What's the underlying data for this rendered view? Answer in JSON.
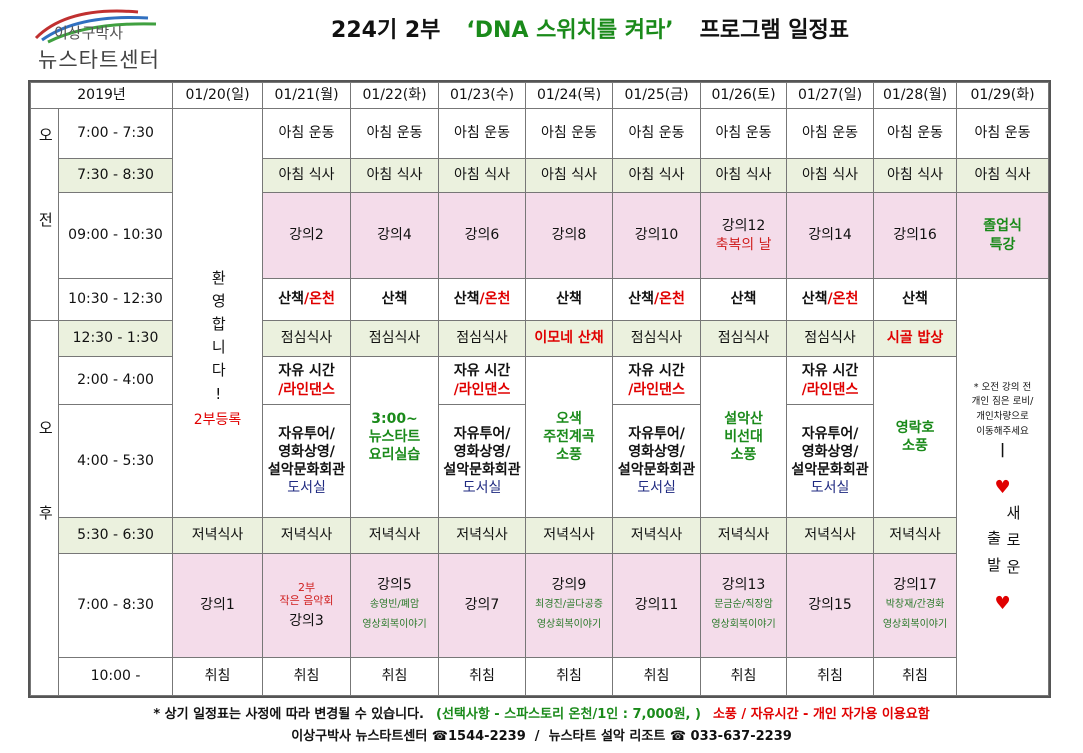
{
  "logo": {
    "line1": "이상구박사",
    "line2": "뉴스타트센터"
  },
  "title": {
    "part1": "224기 2부",
    "part2": "‘DNA 스위치를 켜라’",
    "part3": "프로그램 일정표"
  },
  "table": {
    "corner": "2019년",
    "dates": [
      "01/20(일)",
      "01/21(월)",
      "01/22(화)",
      "01/23(수)",
      "01/24(목)",
      "01/25(금)",
      "01/26(토)",
      "01/27(일)",
      "01/28(월)",
      "01/29(화)"
    ],
    "am": "오전",
    "pm": "오후",
    "times": [
      "7:00  -  7:30",
      "7:30  -  8:30",
      "09:00  -  10:30",
      "10:30  -  12:30",
      "12:30  -  1:30",
      "2:00  -  4:00",
      "4:00  -  5:30",
      "5:30  -  6:30",
      "7:00  -  8:30",
      "10:00  -"
    ],
    "welcome": "환영합니다!",
    "registration": "2부등록",
    "rows": [
      [
        "아침 운동",
        "아침 운동",
        "아침 운동",
        "아침 운동",
        "아침 운동",
        "아침 운동",
        "아침 운동",
        "아침 운동",
        "아침 운동"
      ],
      [
        "아침 식사",
        "아침 식사",
        "아침 식사",
        "아침 식사",
        "아침 식사",
        "아침 식사",
        "아침 식사",
        "아침 식사",
        "아침 식사"
      ],
      [
        "강의2",
        "강의4",
        "강의6",
        "강의8",
        "강의10",
        [
          "강의12",
          "축복의 날"
        ],
        "강의14",
        "강의16",
        [
          "졸업식",
          "특강"
        ]
      ],
      [
        [
          "산책",
          "/온천"
        ],
        "산책",
        [
          "산책",
          "/온천"
        ],
        "산책",
        [
          "산책",
          "/온천"
        ],
        "산책",
        [
          "산책",
          "/온천"
        ],
        "산책"
      ],
      [
        "점심식사",
        "점심식사",
        "점심식사",
        "이모네 산채",
        "점심식사",
        "점심식사",
        "점심식사",
        "시골 밥상"
      ],
      [
        [
          "자유 시간",
          "/라인댄스"
        ],
        [
          "3:00~",
          "뉴스타트",
          "요리실습"
        ],
        [
          "자유 시간",
          "/라인댄스"
        ],
        [
          "오색",
          "주전계곡",
          "소풍"
        ],
        [
          "자유 시간",
          "/라인댄스"
        ],
        [
          "설악산",
          "비선대",
          "소풍"
        ],
        [
          "자유 시간",
          "/라인댄스"
        ],
        [
          "영락호",
          "소풍"
        ]
      ],
      [
        [
          "자유투어/",
          "영화상영/",
          "설악문화회관",
          "도서실"
        ],
        [
          "자유투어/",
          "영화상영/",
          "설악문화회관",
          "도서실"
        ],
        [
          "자유투어/",
          "영화상영/",
          "설악문화회관",
          "도서실"
        ],
        [
          "자유투어/",
          "영화상영/",
          "설악문화회관",
          "도서실"
        ]
      ],
      [
        "저녁식사",
        "저녁식사",
        "저녁식사",
        "저녁식사",
        "저녁식사",
        "저녁식사",
        "저녁식사",
        "저녁식사",
        "저녁식사"
      ],
      [
        "강의1",
        [
          "2부",
          "작은 음악회",
          "강의3"
        ],
        [
          "강의5",
          "송영빈/폐암",
          "영상회복이야기"
        ],
        "강의7",
        [
          "강의9",
          "최경진/골다공증",
          "영상회복이야기"
        ],
        "강의11",
        [
          "강의13",
          "문금순/직장암",
          "영상회복이야기"
        ],
        "강의15",
        [
          "강의17",
          "박창재/간경화",
          "영상회복이야기"
        ]
      ],
      [
        "취침",
        "취침",
        "취침",
        "취침",
        "취침",
        "취침",
        "취침",
        "취침",
        "취침"
      ]
    ],
    "note": [
      "* 오전 강의 전",
      "개인 짐은 로비/",
      "개인차량으로",
      "이동해주세요"
    ],
    "divider": "|",
    "heart": "♥",
    "farewell": [
      "새로운",
      "출발"
    ]
  },
  "footer": {
    "line1": [
      "* 상기 일정표는 사정에 따라 변경될 수 있습니다.",
      "(선택사항 - 스파스토리 온천/1인 : 7,000원, )",
      "소풍 / 자유시간 - 개인 자가용 이용요함"
    ],
    "line2": "이상구박사 뉴스타트센터 ☎1544-2239  /  뉴스타트 설악 리조트 ☎ 033-637-2239"
  }
}
